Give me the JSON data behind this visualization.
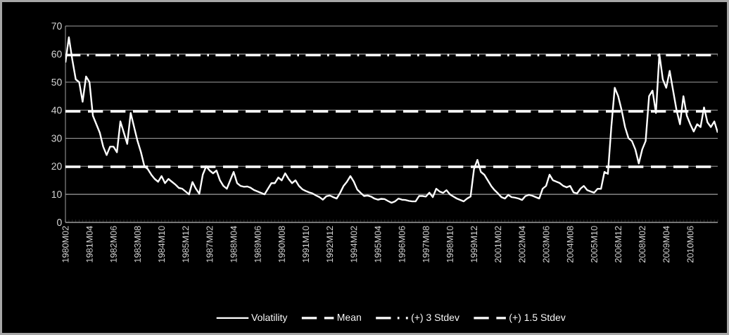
{
  "chart_data": {
    "type": "line",
    "categories": [
      "1980M02",
      null,
      null,
      null,
      null,
      null,
      null,
      "1981M04",
      null,
      null,
      null,
      null,
      null,
      null,
      "1982M06",
      null,
      null,
      null,
      null,
      null,
      null,
      "1983M08",
      null,
      null,
      null,
      null,
      null,
      null,
      "1984M10",
      null,
      null,
      null,
      null,
      null,
      null,
      "1985M12",
      null,
      null,
      null,
      null,
      null,
      null,
      "1987M02",
      null,
      null,
      null,
      null,
      null,
      null,
      "1988M04",
      null,
      null,
      null,
      null,
      null,
      null,
      "1989M06",
      null,
      null,
      null,
      null,
      null,
      null,
      "1990M08",
      null,
      null,
      null,
      null,
      null,
      null,
      "1991M10",
      null,
      null,
      null,
      null,
      null,
      null,
      "1992M12",
      null,
      null,
      null,
      null,
      null,
      null,
      "1994M02",
      null,
      null,
      null,
      null,
      null,
      null,
      "1995M04",
      null,
      null,
      null,
      null,
      null,
      null,
      "1996M06",
      null,
      null,
      null,
      null,
      null,
      null,
      "1997M08",
      null,
      null,
      null,
      null,
      null,
      null,
      "1998M10",
      null,
      null,
      null,
      null,
      null,
      null,
      "1999M12",
      null,
      null,
      null,
      null,
      null,
      null,
      "2001M02",
      null,
      null,
      null,
      null,
      null,
      null,
      "2002M04",
      null,
      null,
      null,
      null,
      null,
      null,
      "2003M06",
      null,
      null,
      null,
      null,
      null,
      null,
      "2004M08",
      null,
      null,
      null,
      null,
      null,
      null,
      "2005M10",
      null,
      null,
      null,
      null,
      null,
      null,
      "2006M12",
      null,
      null,
      null,
      null,
      null,
      null,
      "2008M02",
      null,
      null,
      null,
      null,
      null,
      null,
      "2009M04",
      null,
      null,
      null,
      null,
      null,
      null,
      "2010M06",
      null,
      null,
      null,
      null,
      null,
      null,
      null,
      null
    ],
    "series": [
      {
        "name": "Volatility",
        "color": "#ffffff",
        "values": [
          57,
          66,
          58,
          51,
          50,
          43,
          52,
          50,
          38,
          35,
          32,
          27,
          24,
          27,
          27,
          25,
          36,
          32,
          28,
          39,
          34,
          29,
          25,
          20,
          19,
          17,
          15.5,
          14.5,
          16.5,
          14,
          15.5,
          14.5,
          13.5,
          12.3,
          12,
          11,
          10,
          14.4,
          12,
          10.2,
          17,
          20,
          18.5,
          17.5,
          18.5,
          15,
          13,
          12,
          15,
          18,
          14,
          13,
          12.7,
          12.8,
          12.3,
          11.5,
          11,
          10.5,
          10,
          12,
          14,
          14,
          16,
          15,
          17.5,
          15.5,
          14,
          15,
          13,
          11.8,
          11.2,
          10.7,
          10.3,
          9.6,
          9,
          8.1,
          9.3,
          9.6,
          9,
          8.5,
          10.5,
          13,
          14.5,
          16.5,
          14.5,
          11.7,
          10.5,
          9.4,
          9.6,
          9.2,
          8.5,
          8.1,
          8.4,
          8.3,
          7.6,
          7,
          7.5,
          8.5,
          8.1,
          8,
          7.7,
          7.5,
          7.5,
          9.4,
          9.4,
          9.2,
          10.6,
          9,
          12,
          11,
          10.5,
          11.5,
          10,
          9.2,
          8.5,
          8,
          7.5,
          8.5,
          9.2,
          19,
          22.3,
          18,
          17,
          15,
          13,
          11.5,
          10.3,
          9,
          8.5,
          9.8,
          9,
          8.8,
          8.5,
          8,
          9.4,
          9.8,
          9.5,
          9,
          8.5,
          12,
          13,
          17,
          15,
          14.5,
          14,
          13,
          12.5,
          13,
          10.7,
          10.3,
          12,
          13,
          11.5,
          11,
          10.6,
          12,
          12,
          18,
          17.3,
          34,
          48,
          45,
          40,
          34,
          30,
          29,
          26,
          21,
          26,
          29,
          45,
          47,
          39,
          60,
          51,
          48,
          54,
          47,
          40,
          35,
          45,
          38,
          35,
          32.4,
          35,
          34,
          41,
          35.7,
          34,
          36,
          32
        ]
      }
    ],
    "ylim": [
      0,
      70
    ],
    "yticks": [
      0,
      10,
      20,
      30,
      40,
      50,
      60,
      70
    ],
    "grid": "y",
    "legend": "bottom",
    "marker": "none",
    "line_style": "solid",
    "ref_lines": [
      {
        "axis": "y",
        "value": 19.8,
        "label": "Mean",
        "color": "#ffffff",
        "line_style": "dashed"
      },
      {
        "axis": "y",
        "value": 59.6,
        "label": "(+) 3 Stdev",
        "color": "#ffffff",
        "line_style": "dashdot"
      },
      {
        "axis": "y",
        "value": 39.6,
        "label": "(+) 1.5 Stdev",
        "color": "#ffffff",
        "line_style": "dashed"
      }
    ]
  }
}
